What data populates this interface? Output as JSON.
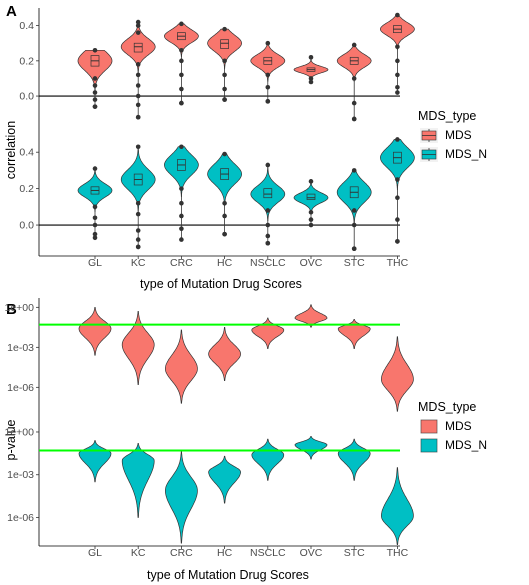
{
  "figure": {
    "panel_a_letter": "A",
    "panel_b_letter": "B"
  },
  "chart_data": [
    {
      "type": "violin",
      "panel": "A",
      "xlabel": "type of Mutation Drug Scores",
      "ylabel": "correlation",
      "categories": [
        "GL",
        "KC",
        "CRC",
        "HC",
        "NSCLC",
        "OVC",
        "STC",
        "THC"
      ],
      "yticks": [
        "0.0",
        "0.2",
        "0.4"
      ],
      "ylim": [
        -0.17,
        0.5
      ],
      "reference_line": 0.0,
      "legend": {
        "title": "MDS_type",
        "labels": [
          "MDS",
          "MDS_N"
        ],
        "placement": "right"
      },
      "series": [
        {
          "name": "MDS",
          "color": "#F8766D",
          "median": [
            0.2,
            0.28,
            0.34,
            0.3,
            0.2,
            0.15,
            0.2,
            0.38
          ],
          "q1": [
            0.17,
            0.25,
            0.32,
            0.27,
            0.18,
            0.14,
            0.18,
            0.36
          ],
          "q3": [
            0.23,
            0.3,
            0.36,
            0.32,
            0.22,
            0.16,
            0.22,
            0.4
          ],
          "min": [
            -0.06,
            -0.12,
            -0.04,
            -0.02,
            -0.03,
            0.08,
            -0.13,
            0.02
          ],
          "max": [
            0.26,
            0.42,
            0.41,
            0.38,
            0.3,
            0.22,
            0.29,
            0.46
          ],
          "outliers": [
            [
              0.1,
              0.06,
              0.02,
              -0.02,
              -0.06
            ],
            [
              0.18,
              0.12,
              0.06,
              0.0,
              -0.05,
              -0.12,
              0.36,
              0.4
            ],
            [
              0.26,
              0.2,
              0.12,
              0.04,
              -0.04
            ],
            [
              0.2,
              0.12,
              0.04,
              -0.02
            ],
            [
              0.12,
              0.05,
              -0.03
            ],
            [
              0.1
            ],
            [
              0.1,
              -0.04,
              -0.13
            ],
            [
              0.28,
              0.2,
              0.12,
              0.05
            ]
          ]
        },
        {
          "name": "MDS_N",
          "color": "#00BFC4",
          "median": [
            0.19,
            0.25,
            0.33,
            0.28,
            0.17,
            0.15,
            0.18,
            0.37
          ],
          "q1": [
            0.17,
            0.22,
            0.3,
            0.25,
            0.15,
            0.14,
            0.15,
            0.34
          ],
          "q3": [
            0.21,
            0.28,
            0.36,
            0.31,
            0.2,
            0.17,
            0.21,
            0.4
          ],
          "min": [
            -0.07,
            -0.12,
            -0.08,
            -0.05,
            -0.1,
            0.0,
            -0.13,
            -0.09
          ],
          "max": [
            0.31,
            0.43,
            0.43,
            0.39,
            0.33,
            0.24,
            0.3,
            0.47
          ],
          "outliers": [
            [
              0.1,
              0.04,
              0.0,
              -0.05
            ],
            [
              0.12,
              0.06,
              -0.03,
              -0.08,
              -0.12
            ],
            [
              0.2,
              0.12,
              0.05,
              -0.02
            ],
            [
              0.12,
              0.05,
              -0.05
            ],
            [
              0.08,
              0.0,
              -0.06,
              -0.1
            ],
            [
              0.07,
              0.03
            ],
            [
              0.08,
              0.0,
              -0.13
            ],
            [
              0.25,
              0.15,
              0.03,
              -0.09
            ]
          ]
        }
      ]
    },
    {
      "type": "violin",
      "panel": "B",
      "xlabel": "type of Mutation Drug Scores",
      "ylabel": "p-value",
      "categories": [
        "GL",
        "KC",
        "CRC",
        "HC",
        "NSCLC",
        "OVC",
        "STC",
        "THC"
      ],
      "yticks": [
        "1e-06",
        "1e-03",
        "1e+00"
      ],
      "yscale": "log10",
      "ylim_log10": [
        -8,
        0.7
      ],
      "threshold_line": 0.05,
      "threshold_color": "#00FF00",
      "legend": {
        "title": "MDS_type",
        "labels": [
          "MDS",
          "MDS_N"
        ],
        "placement": "right"
      },
      "series": [
        {
          "name": "MDS",
          "color": "#F8766D",
          "mode_log10": [
            -1.6,
            -2.8,
            -4.6,
            -3.5,
            -1.7,
            -0.8,
            -1.6,
            -5.4
          ],
          "min_log10": [
            -3.6,
            -5.8,
            -7.2,
            -5.5,
            -3.1,
            -1.5,
            -3.1,
            -7.8
          ],
          "max_log10": [
            0.0,
            -0.3,
            -1.7,
            -1.5,
            -0.8,
            0.2,
            -0.9,
            -2.2
          ]
        },
        {
          "name": "MDS_N",
          "color": "#00BFC4",
          "mode_log10": [
            -1.5,
            -2.0,
            -4.1,
            -2.8,
            -1.6,
            -0.9,
            -1.5,
            -5.9
          ],
          "min_log10": [
            -3.5,
            -6.0,
            -7.8,
            -5.0,
            -3.4,
            -1.9,
            -3.4,
            -7.9
          ],
          "max_log10": [
            -0.6,
            -0.8,
            -1.4,
            -1.7,
            -0.5,
            -0.3,
            -0.5,
            -2.5
          ]
        }
      ]
    }
  ]
}
